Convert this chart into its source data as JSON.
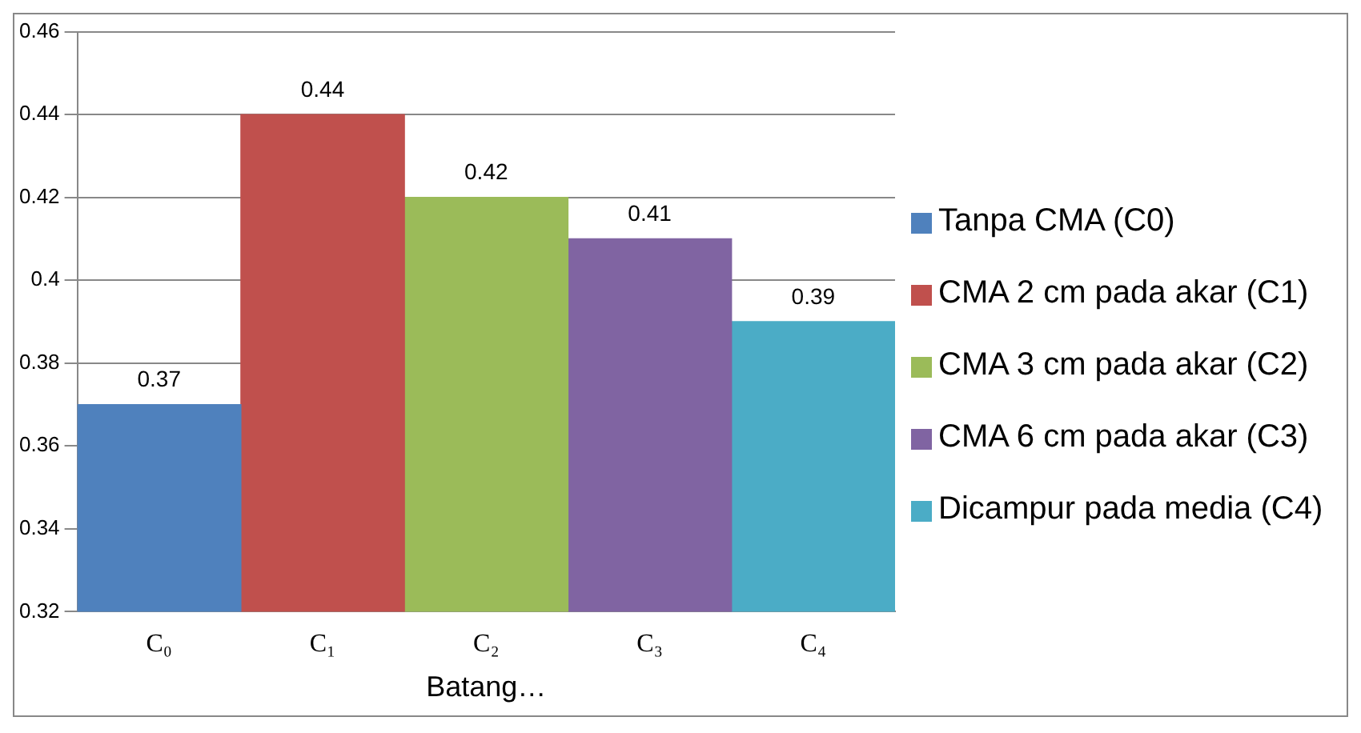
{
  "chart_data": {
    "type": "bar",
    "xlabel": "Batang…",
    "categories": [
      "C₀",
      "C₁",
      "C₂",
      "C₃",
      "C₄"
    ],
    "series": [
      {
        "name": "Tanpa CMA (C0)",
        "color": "#4f81bd",
        "values": [
          0.37,
          null,
          null,
          null,
          null
        ]
      },
      {
        "name": "CMA 2 cm pada akar (C1)",
        "color": "#c0504d",
        "values": [
          null,
          0.44,
          null,
          null,
          null
        ]
      },
      {
        "name": "CMA 3 cm pada akar (C2)",
        "color": "#9bbb59",
        "values": [
          null,
          null,
          0.42,
          null,
          null
        ]
      },
      {
        "name": "CMA 6 cm pada akar (C3)",
        "color": "#8064a2",
        "values": [
          null,
          null,
          null,
          0.41,
          null
        ]
      },
      {
        "name": "Dicampur pada media (C4)",
        "color": "#4bacc6",
        "values": [
          null,
          null,
          null,
          null,
          0.39
        ]
      }
    ],
    "ylim": [
      0.32,
      0.46
    ],
    "yticks": [
      0.32,
      0.34,
      0.36,
      0.38,
      0.4,
      0.42,
      0.44,
      0.46
    ],
    "grid": "y",
    "legend": "right",
    "data_labels": true
  }
}
